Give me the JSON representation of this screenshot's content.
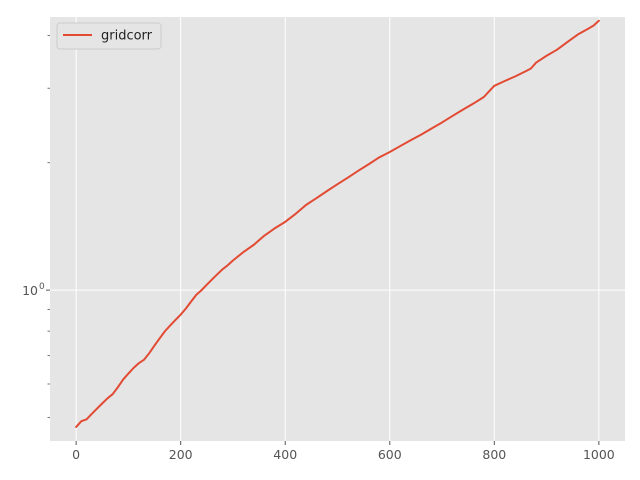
{
  "chart_data": {
    "type": "line",
    "x_scale": "linear",
    "y_scale": "log",
    "xlim": [
      -50,
      1050
    ],
    "ylim": [
      0.44,
      4.42
    ],
    "x_ticks": [
      {
        "value": 0,
        "label": "0"
      },
      {
        "value": 200,
        "label": "200"
      },
      {
        "value": 400,
        "label": "400"
      },
      {
        "value": 600,
        "label": "600"
      },
      {
        "value": 800,
        "label": "800"
      },
      {
        "value": 1000,
        "label": "1000"
      }
    ],
    "y_major_ticks": [
      {
        "value": 1.0,
        "label": "10",
        "superscript": "0"
      }
    ],
    "y_minor_ticks": [
      0.5,
      0.6,
      0.7,
      0.8,
      0.9,
      2,
      3,
      4
    ],
    "grid": true,
    "legend_position": "top-left",
    "colors": {
      "background": "#e5e5e5",
      "grid": "#ffffff",
      "series": "#e24a33",
      "tick_text": "#555555"
    },
    "series": [
      {
        "name": "gridcorr",
        "color": "#e24a33",
        "x": [
          0,
          10,
          20,
          30,
          40,
          50,
          60,
          70,
          80,
          90,
          100,
          110,
          120,
          130,
          140,
          150,
          160,
          170,
          180,
          190,
          200,
          210,
          220,
          230,
          240,
          250,
          260,
          270,
          280,
          290,
          300,
          320,
          340,
          360,
          380,
          400,
          420,
          440,
          460,
          480,
          500,
          520,
          540,
          560,
          580,
          600,
          620,
          640,
          660,
          680,
          700,
          720,
          740,
          760,
          780,
          790,
          800,
          820,
          840,
          860,
          870,
          880,
          900,
          920,
          940,
          960,
          980,
          990,
          1000
        ],
        "y": [
          0.475,
          0.49,
          0.495,
          0.51,
          0.525,
          0.54,
          0.555,
          0.568,
          0.59,
          0.615,
          0.635,
          0.655,
          0.672,
          0.685,
          0.71,
          0.74,
          0.77,
          0.8,
          0.825,
          0.85,
          0.875,
          0.905,
          0.94,
          0.975,
          1.0,
          1.03,
          1.06,
          1.09,
          1.12,
          1.145,
          1.175,
          1.23,
          1.28,
          1.345,
          1.4,
          1.45,
          1.515,
          1.59,
          1.65,
          1.715,
          1.78,
          1.845,
          1.915,
          1.985,
          2.06,
          2.12,
          2.19,
          2.26,
          2.33,
          2.41,
          2.49,
          2.58,
          2.67,
          2.76,
          2.86,
          2.95,
          3.04,
          3.12,
          3.2,
          3.29,
          3.34,
          3.45,
          3.58,
          3.7,
          3.86,
          4.02,
          4.15,
          4.22,
          4.33
        ]
      }
    ]
  }
}
